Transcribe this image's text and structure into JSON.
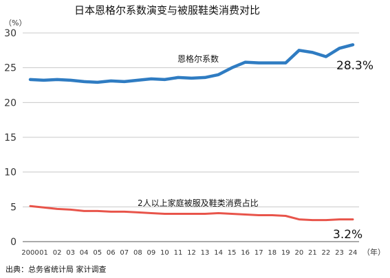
{
  "chart_data": {
    "type": "line",
    "title": "日本恩格尔系数演变与被服鞋类消费对比",
    "ylabel": "（%）",
    "xlabel": "（年）",
    "ylim": [
      0,
      30
    ],
    "yticks": [
      "0",
      "5",
      "10",
      "15",
      "20",
      "25",
      "30"
    ],
    "grid": true,
    "categories": [
      "2000",
      "01",
      "02",
      "03",
      "04",
      "05",
      "06",
      "07",
      "08",
      "09",
      "10",
      "11",
      "12",
      "13",
      "14",
      "15",
      "16",
      "17",
      "18",
      "19",
      "20",
      "21",
      "22",
      "23",
      "24"
    ],
    "series": [
      {
        "name": "恩格尔系数",
        "color": "#2f7cc2",
        "values": [
          23.3,
          23.2,
          23.3,
          23.2,
          23.0,
          22.9,
          23.1,
          23.0,
          23.2,
          23.4,
          23.3,
          23.6,
          23.5,
          23.6,
          24.0,
          25.0,
          25.8,
          25.7,
          25.7,
          25.7,
          27.5,
          27.2,
          26.6,
          27.8,
          28.3
        ],
        "end_label": "28.3%"
      },
      {
        "name": "2人以上家庭被服及鞋类消费占比",
        "color": "#e8544a",
        "values": [
          5.1,
          4.9,
          4.7,
          4.6,
          4.4,
          4.4,
          4.3,
          4.3,
          4.2,
          4.1,
          4.0,
          4.0,
          4.0,
          4.0,
          4.1,
          4.0,
          3.9,
          3.8,
          3.8,
          3.7,
          3.2,
          3.1,
          3.1,
          3.2,
          3.2
        ],
        "end_label": "3.2%"
      }
    ],
    "source": "出典：总务省统计局 家计调查"
  }
}
